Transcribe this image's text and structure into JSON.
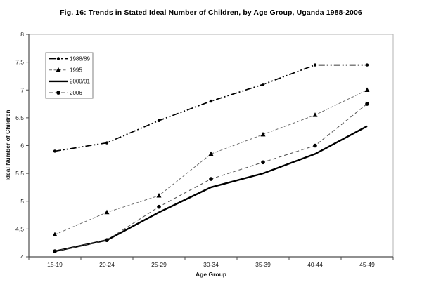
{
  "chart_data": {
    "type": "line",
    "title": "Fig. 16:  Trends in Stated Ideal Number of Children, by Age Group, Uganda 1988-2006",
    "xlabel": "Age Group",
    "ylabel": "Ideal Number of Children",
    "categories": [
      "15-19",
      "20-24",
      "25-29",
      "30-34",
      "35-39",
      "40-44",
      "45-49"
    ],
    "series": [
      {
        "name": "1988/89",
        "values": [
          5.9,
          6.05,
          6.45,
          6.8,
          7.1,
          7.45,
          7.45
        ],
        "marker": "circle",
        "dash": "9 3 2 3 2 3",
        "color": "#000000",
        "width": 1.7
      },
      {
        "name": "1995",
        "values": [
          4.4,
          4.8,
          5.1,
          5.85,
          6.2,
          6.55,
          7.0
        ],
        "marker": "triangle",
        "dash": "4 2.5",
        "color": "#6e6e6e",
        "width": 1
      },
      {
        "name": "2000/01",
        "values": [
          4.1,
          4.3,
          4.8,
          5.25,
          5.5,
          5.85,
          6.35
        ],
        "marker": "none",
        "dash": "",
        "color": "#000000",
        "width": 2.4
      },
      {
        "name": "2006",
        "values": [
          4.1,
          4.3,
          4.9,
          5.4,
          5.7,
          6.0,
          6.75
        ],
        "marker": "circle-large",
        "dash": "5 3.5",
        "color": "#5a5a5a",
        "width": 1.1
      }
    ],
    "ylim": [
      4,
      8
    ],
    "ytick_step": 0.5,
    "ytick_labels": [
      "4",
      "4.5",
      "5",
      "5.5",
      "6",
      "6.5",
      "7",
      "7.5",
      "8"
    ],
    "grid": false,
    "legend_position": "upper-left",
    "marker_color": "#000000",
    "axis_color": "#4d4d4d",
    "plot_border_color": "#b3b3b3",
    "text_color": "#1a1a1a"
  }
}
